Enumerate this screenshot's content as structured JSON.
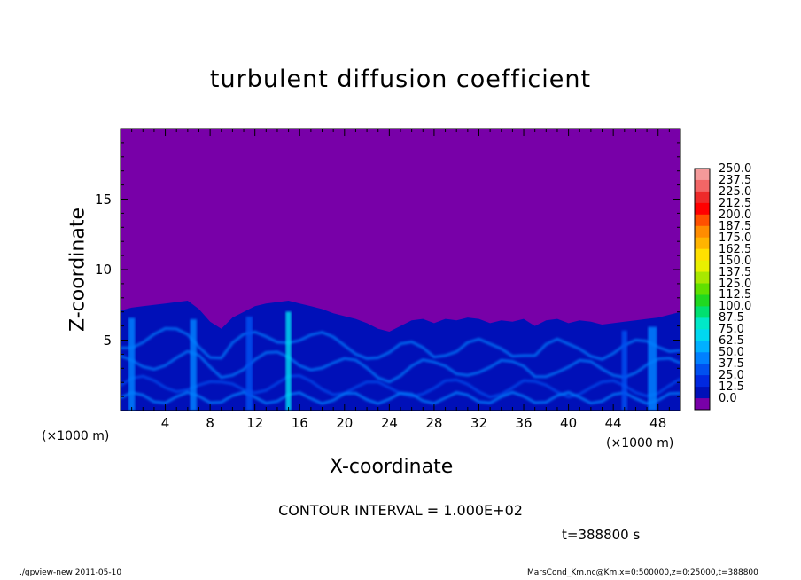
{
  "chart_data": {
    "type": "heatmap",
    "title": "turbulent diffusion coefficient",
    "xlabel": "X-coordinate",
    "ylabel": "Z-coordinate",
    "x_unit_left": "(×1000 m)",
    "x_unit_right": "(×1000 m)",
    "xlim": [
      0,
      50
    ],
    "ylim": [
      0,
      20
    ],
    "x_ticks": [
      "4",
      "8",
      "12",
      "16",
      "20",
      "24",
      "28",
      "32",
      "36",
      "40",
      "44",
      "48"
    ],
    "y_ticks": [
      "5",
      "10",
      "15"
    ],
    "colorbar": {
      "labels": [
        "250.0",
        "237.5",
        "225.0",
        "212.5",
        "200.0",
        "187.5",
        "175.0",
        "162.5",
        "150.0",
        "137.5",
        "125.0",
        "112.5",
        "100.0",
        "87.5",
        "75.0",
        "62.5",
        "50.0",
        "37.5",
        "25.0",
        "12.5",
        "0.0"
      ],
      "colors": [
        "#f49a9a",
        "#f26666",
        "#ee2a2a",
        "#ff0000",
        "#ff5000",
        "#ff8c00",
        "#ffb400",
        "#ffe000",
        "#e8f000",
        "#a8e800",
        "#60e000",
        "#20d820",
        "#00e070",
        "#00e8c8",
        "#00d8f0",
        "#00b0ff",
        "#0080ff",
        "#0050f0",
        "#0028e0",
        "#0010b8",
        "#7800a8"
      ]
    },
    "background_color": "#7800a8",
    "turbulent_layer_top_km": [
      7.1,
      7.3,
      7.4,
      7.5,
      7.6,
      7.7,
      7.8,
      7.2,
      6.3,
      5.8,
      6.6,
      7.0,
      7.4,
      7.6,
      7.7,
      7.8,
      7.6,
      7.4,
      7.2,
      6.9,
      6.7,
      6.5,
      6.2,
      5.8,
      5.6,
      6.0,
      6.4,
      6.5,
      6.2,
      6.5,
      6.4,
      6.6,
      6.5,
      6.2,
      6.4,
      6.3,
      6.5,
      6.0,
      6.4,
      6.5,
      6.2,
      6.4,
      6.3,
      6.1,
      6.2,
      6.3,
      6.4,
      6.5,
      6.6,
      6.8,
      7.0
    ],
    "plumes": [
      {
        "x": 15.0,
        "peak": 80,
        "width": 0.5
      },
      {
        "x": 1.0,
        "peak": 60,
        "width": 0.6
      },
      {
        "x": 47.5,
        "peak": 60,
        "width": 0.8
      },
      {
        "x": 6.5,
        "peak": 50,
        "width": 0.6
      },
      {
        "x": 11.5,
        "peak": 45,
        "width": 0.6
      },
      {
        "x": 45.0,
        "peak": 45,
        "width": 0.5
      }
    ]
  },
  "contour_interval": "CONTOUR INTERVAL = 1.000E+02",
  "time_label": "t=388800 s",
  "footer_left": "./gpview-new  2011-05-10",
  "footer_right": "MarsCond_Km.nc@Km,x=0:500000,z=0:25000,t=388800"
}
